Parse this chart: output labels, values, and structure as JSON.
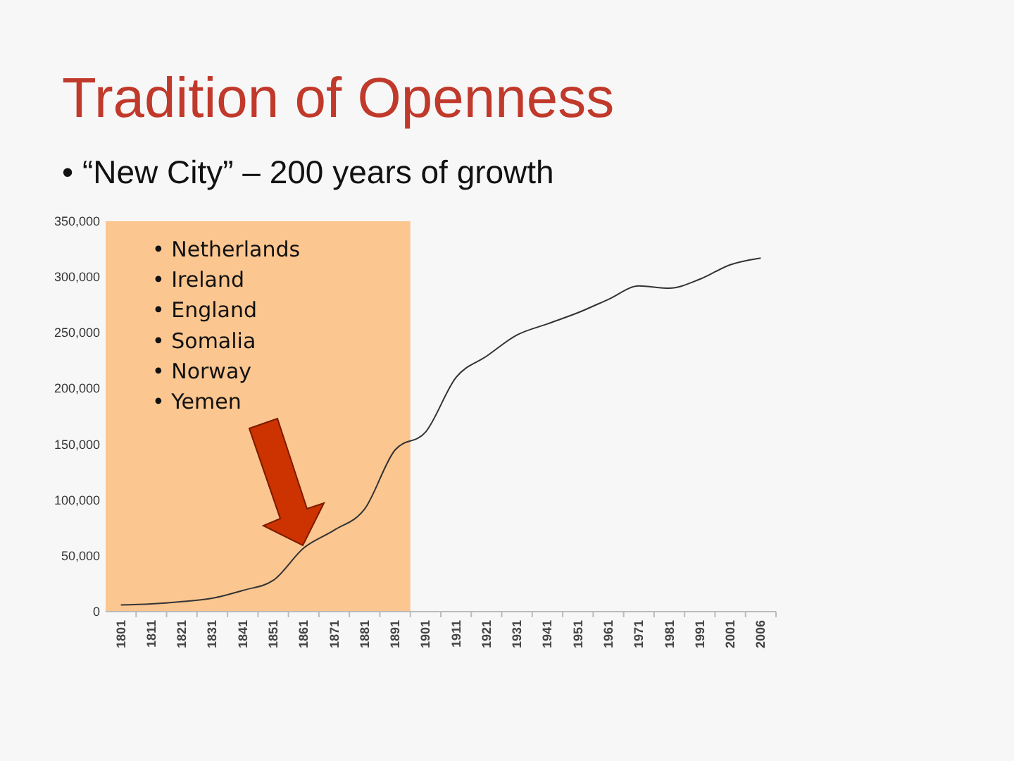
{
  "chart_data": {
    "type": "line",
    "title": "Tradition of Openness",
    "subtitle": "• “New City” – 200 years of growth",
    "categories": [
      "1801",
      "1811",
      "1821",
      "1831",
      "1841",
      "1851",
      "1861",
      "1871",
      "1881",
      "1891",
      "1901",
      "1911",
      "1921",
      "1931",
      "1941",
      "1951",
      "1961",
      "1971",
      "1981",
      "1991",
      "2001",
      "2006"
    ],
    "series": [
      {
        "color": "#333333",
        "values": [
          6000,
          7000,
          9000,
          12000,
          19000,
          28000,
          57000,
          73000,
          92000,
          145000,
          161000,
          210000,
          229000,
          248000,
          258000,
          268000,
          280000,
          292000,
          290000,
          298000,
          311000,
          317000
        ]
      }
    ],
    "ylim": [
      0,
      350000
    ],
    "yticks": [
      0,
      {
        "value": 50000,
        "label": "50,000"
      },
      {
        "value": 100000,
        "label": "100,000"
      },
      {
        "value": 150000,
        "label": "150,000"
      },
      {
        "value": 200000,
        "label": "200,000"
      },
      {
        "value": 250000,
        "label": "250,000"
      },
      {
        "value": 300000,
        "label": "300,000"
      },
      {
        "value": 350000,
        "label": "350,000"
      }
    ],
    "bands": [
      {
        "axis": "x",
        "from": "1801",
        "to": "1891",
        "color": "#fbc690"
      }
    ],
    "annotations": [
      "• Netherlands",
      "• Ireland",
      "• England",
      "• Somalia",
      "• Norway",
      "• Yemen"
    ],
    "grid": false
  }
}
